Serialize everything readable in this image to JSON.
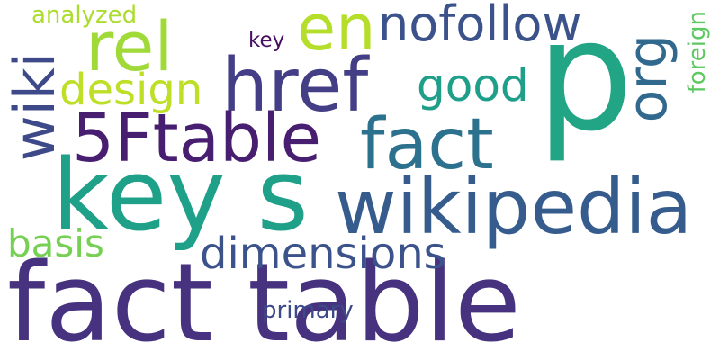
{
  "words": [
    {
      "text": "fact table",
      "color": "#46327e"
    },
    {
      "text": "p",
      "color": "#21a585"
    },
    {
      "text": "key s",
      "color": "#1fa088"
    },
    {
      "text": "wikipedia",
      "color": "#365c8d"
    },
    {
      "text": "href",
      "color": "#433e85"
    },
    {
      "text": "5Ftable",
      "color": "#481f70"
    },
    {
      "text": "fact",
      "color": "#2c728e"
    },
    {
      "text": "en",
      "color": "#b5de2b"
    },
    {
      "text": "rel",
      "color": "#a0da39"
    },
    {
      "text": "nofollow",
      "color": "#3b528b"
    },
    {
      "text": "wiki",
      "color": "#3e4989"
    },
    {
      "text": "org",
      "color": "#31688e"
    },
    {
      "text": "design",
      "color": "#bddf26"
    },
    {
      "text": "good",
      "color": "#1f9e89"
    },
    {
      "text": "dimensions",
      "color": "#3b528b"
    },
    {
      "text": "basis",
      "color": "#75d054"
    },
    {
      "text": "analyzed",
      "color": "#addc30"
    },
    {
      "text": "key",
      "color": "#471063"
    },
    {
      "text": "foreign",
      "color": "#5ec962"
    },
    {
      "text": "primary",
      "color": "#3e4989"
    }
  ]
}
